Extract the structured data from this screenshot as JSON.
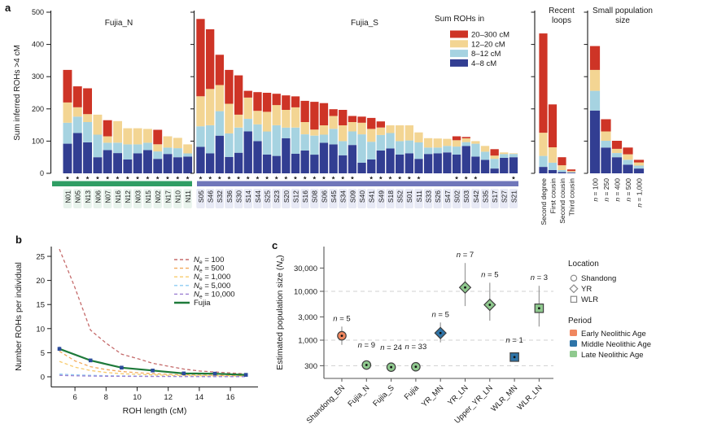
{
  "panels": {
    "a_label": "a",
    "b_label": "b",
    "c_label": "c"
  },
  "chart_data": [
    {
      "id": "a",
      "type": "bar",
      "stacked": true,
      "ylabel": "Sum inferred ROHs >4 cM",
      "ylim": [
        0,
        500
      ],
      "yticks": [
        0,
        100,
        200,
        300,
        400,
        500
      ],
      "segment_order": [
        "4–8 cM",
        "8–12 cM",
        "12–20 cM",
        "20–300 cM"
      ],
      "segment_colors": [
        "#323e92",
        "#a6d3e1",
        "#f3d593",
        "#ce3426"
      ],
      "legend": {
        "title": "Sum ROHs in",
        "items": [
          {
            "label": "20–300 cM",
            "color": "#ce3426"
          },
          {
            "label": "12–20 cM",
            "color": "#f3d593"
          },
          {
            "label": "8–12 cM",
            "color": "#a6d3e1"
          },
          {
            "label": "4–8 cM",
            "color": "#323e92"
          }
        ]
      },
      "groups": [
        {
          "name": "Fujia_N",
          "band_color": "#2f9e64",
          "label_bg": "#e8f3ec",
          "bars": [
            {
              "label": "N01",
              "star": true,
              "segments": [
                92,
                65,
                63,
                101
              ]
            },
            {
              "label": "N05",
              "star": true,
              "segments": [
                125,
                51,
                29,
                65
              ]
            },
            {
              "label": "N13",
              "star": true,
              "segments": [
                96,
                63,
                25,
                80
              ]
            },
            {
              "label": "N06",
              "star": true,
              "segments": [
                50,
                70,
                62,
                0
              ]
            },
            {
              "label": "N07",
              "star": true,
              "segments": [
                72,
                23,
                20,
                50
              ]
            },
            {
              "label": "N16",
              "star": true,
              "segments": [
                63,
                32,
                67,
                0
              ]
            },
            {
              "label": "N12",
              "star": true,
              "segments": [
                43,
                47,
                50,
                0
              ]
            },
            {
              "label": "N03",
              "star": true,
              "segments": [
                62,
                28,
                50,
                0
              ]
            },
            {
              "label": "N15",
              "star": true,
              "segments": [
                72,
                23,
                43,
                0
              ]
            },
            {
              "label": "N02",
              "star": true,
              "segments": [
                45,
                23,
                22,
                45
              ]
            },
            {
              "label": "N17",
              "star": true,
              "segments": [
                60,
                20,
                35,
                0
              ]
            },
            {
              "label": "N10",
              "star": true,
              "segments": [
                50,
                28,
                32,
                0
              ]
            },
            {
              "label": "N11",
              "star": true,
              "segments": [
                52,
                10,
                28,
                0
              ]
            }
          ]
        },
        {
          "name": "Fujia_S",
          "band_color": "#6f76ba",
          "label_bg": "#e7e9f5",
          "bars": [
            {
              "label": "S05",
              "star": true,
              "segments": [
                82,
                64,
                93,
                240
              ]
            },
            {
              "label": "S46",
              "star": true,
              "segments": [
                62,
                87,
                113,
                185
              ]
            },
            {
              "label": "S32",
              "star": true,
              "segments": [
                117,
                76,
                81,
                94
              ]
            },
            {
              "label": "S36",
              "star": true,
              "segments": [
                51,
                73,
                92,
                105
              ]
            },
            {
              "label": "S30",
              "star": true,
              "segments": [
                64,
                78,
                40,
                122
              ]
            },
            {
              "label": "S14",
              "star": true,
              "segments": [
                130,
                39,
                66,
                21
              ]
            },
            {
              "label": "S44",
              "star": true,
              "segments": [
                100,
                52,
                42,
                58
              ]
            },
            {
              "label": "S25",
              "star": true,
              "segments": [
                58,
                72,
                61,
                59
              ]
            },
            {
              "label": "S23",
              "star": true,
              "segments": [
                54,
                95,
                63,
                35
              ]
            },
            {
              "label": "S20",
              "star": true,
              "segments": [
                109,
                33,
                55,
                45
              ]
            },
            {
              "label": "S12",
              "star": true,
              "segments": [
                61,
                81,
                63,
                34
              ]
            },
            {
              "label": "S16",
              "star": true,
              "segments": [
                71,
                50,
                38,
                66
              ]
            },
            {
              "label": "S08",
              "star": true,
              "segments": [
                58,
                59,
                19,
                86
              ]
            },
            {
              "label": "S06",
              "star": true,
              "segments": [
                95,
                25,
                29,
                69
              ]
            },
            {
              "label": "S45",
              "star": true,
              "segments": [
                90,
                48,
                40,
                21
              ]
            },
            {
              "label": "S34",
              "star": true,
              "segments": [
                56,
                44,
                49,
                48
              ]
            },
            {
              "label": "S09",
              "star": true,
              "segments": [
                88,
                42,
                29,
                19
              ]
            },
            {
              "label": "S40",
              "star": false,
              "segments": [
                33,
                88,
                36,
                19
              ]
            },
            {
              "label": "S41",
              "star": true,
              "segments": [
                43,
                55,
                40,
                34
              ]
            },
            {
              "label": "S49",
              "star": true,
              "segments": [
                71,
                48,
                23,
                19
              ]
            },
            {
              "label": "S18",
              "star": true,
              "segments": [
                77,
                48,
                24,
                0
              ]
            },
            {
              "label": "S52",
              "star": true,
              "segments": [
                58,
                42,
                49,
                0
              ]
            },
            {
              "label": "S01",
              "star": true,
              "segments": [
                62,
                40,
                47,
                0
              ]
            },
            {
              "label": "S11",
              "star": true,
              "segments": [
                45,
                51,
                31,
                0
              ]
            },
            {
              "label": "S33",
              "star": false,
              "segments": [
                60,
                20,
                29,
                0
              ]
            },
            {
              "label": "S26",
              "star": false,
              "segments": [
                62,
                18,
                28,
                0
              ]
            },
            {
              "label": "S47",
              "star": false,
              "segments": [
                65,
                20,
                22,
                0
              ]
            },
            {
              "label": "S02",
              "star": true,
              "segments": [
                58,
                25,
                20,
                12
              ]
            },
            {
              "label": "S03",
              "star": true,
              "segments": [
                85,
                12,
                12,
                4
              ]
            },
            {
              "label": "S42",
              "star": true,
              "segments": [
                52,
                40,
                8,
                0
              ]
            },
            {
              "label": "S35",
              "star": false,
              "segments": [
                42,
                25,
                18,
                0
              ]
            },
            {
              "label": "S17",
              "star": false,
              "segments": [
                15,
                30,
                10,
                20
              ]
            },
            {
              "label": "S27",
              "star": false,
              "segments": [
                48,
                12,
                5,
                0
              ]
            },
            {
              "label": "S21",
              "star": true,
              "segments": [
                50,
                10,
                2,
                0
              ]
            }
          ]
        },
        {
          "name": "Recent loops",
          "bars": [
            {
              "label": "Second degree",
              "star": false,
              "segments": [
                20,
                34,
                72,
                308
              ]
            },
            {
              "label": "First cousin",
              "star": false,
              "segments": [
                10,
                23,
                48,
                133
              ]
            },
            {
              "label": "Second cousin",
              "star": false,
              "segments": [
                4,
                6,
                15,
                25
              ]
            },
            {
              "label": "Third cousin",
              "star": false,
              "segments": [
                2,
                2,
                3,
                5
              ]
            }
          ]
        },
        {
          "name": "Small population size",
          "bars": [
            {
              "label": "n = 100",
              "star": false,
              "segments": [
                195,
                61,
                65,
                74
              ]
            },
            {
              "label": "n = 250",
              "star": false,
              "segments": [
                80,
                21,
                29,
                38
              ]
            },
            {
              "label": "n = 400",
              "star": false,
              "segments": [
                50,
                13,
                13,
                25
              ]
            },
            {
              "label": "n = 500",
              "star": false,
              "segments": [
                27,
                15,
                17,
                21
              ]
            },
            {
              "label": "n = 1,000",
              "star": false,
              "segments": [
                15,
                9,
                10,
                8
              ]
            }
          ]
        }
      ]
    },
    {
      "id": "b",
      "type": "line",
      "xlabel": "ROH length (cM)",
      "ylabel": "Number ROHs per individual",
      "xlim": [
        4.6,
        17.6
      ],
      "ylim": [
        0,
        27
      ],
      "xticks": [
        6,
        8,
        10,
        12,
        14,
        16
      ],
      "yticks": [
        0,
        5,
        10,
        15,
        20,
        25
      ],
      "x": [
        5,
        6,
        7,
        8,
        9,
        10,
        11,
        12,
        13,
        14,
        15,
        16,
        17
      ],
      "series": [
        {
          "label": "Ne = 100",
          "color": "#c56b6b",
          "dash": true,
          "y": [
            26.5,
            18.5,
            9.7,
            7.0,
            4.7,
            3.8,
            2.8,
            2.2,
            1.6,
            1.2,
            1.0,
            0.8,
            0.6
          ]
        },
        {
          "label": "Ne = 500",
          "color": "#f2a95c",
          "dash": true,
          "y": [
            5.3,
            3.3,
            2.1,
            1.5,
            1.1,
            0.85,
            0.65,
            0.5,
            0.4,
            0.35,
            0.3,
            0.25,
            0.2
          ]
        },
        {
          "label": "Ne = 1,000",
          "color": "#f7cb6d",
          "dash": true,
          "y": [
            3.2,
            2.0,
            1.3,
            0.9,
            0.65,
            0.5,
            0.4,
            0.3,
            0.25,
            0.2,
            0.18,
            0.15,
            0.12
          ]
        },
        {
          "label": "Ne = 5,000",
          "color": "#8ecbf2",
          "dash": true,
          "y": [
            0.55,
            0.4,
            0.3,
            0.22,
            0.18,
            0.15,
            0.12,
            0.1,
            0.08,
            0.07,
            0.06,
            0.05,
            0.05
          ]
        },
        {
          "label": "Ne = 10,000",
          "color": "#9d80d2",
          "dash": true,
          "y": [
            0.3,
            0.2,
            0.15,
            0.12,
            0.1,
            0.08,
            0.07,
            0.06,
            0.05,
            0.04,
            0.04,
            0.03,
            0.03
          ]
        },
        {
          "label": "Fujia",
          "color": "#1e7a3a",
          "dash": false,
          "marker_color": "#2b4b9b",
          "x": [
            5,
            7,
            9,
            11,
            13,
            15,
            17
          ],
          "y": [
            5.8,
            3.4,
            1.9,
            1.3,
            0.7,
            0.65,
            0.4
          ],
          "yerr": [
            0.5,
            0.25,
            0.2,
            0.15,
            0.12,
            0.1,
            0.1
          ]
        }
      ]
    },
    {
      "id": "c",
      "type": "scatter",
      "ylabel": "Estimated population size (Ne)",
      "yscale": "log",
      "yticks": [
        300,
        1000,
        3000,
        10000,
        30000
      ],
      "ytick_labels": [
        "300",
        "1,000",
        "3,000",
        "10,000",
        "30,000"
      ],
      "gridlines": [
        300,
        1000,
        10000
      ],
      "points": [
        {
          "category": "Shandong_EN",
          "n": 5,
          "value": 1230,
          "err_low": 800,
          "err_high": 1900,
          "marker": "circle",
          "period": "Early Neolithic Age",
          "color": "#f0875f"
        },
        {
          "category": "Fujia_N",
          "n": 9,
          "value": 310,
          "err_low": 270,
          "err_high": 355,
          "marker": "circle",
          "period": "Late Neolithic Age",
          "color": "#8fc98e"
        },
        {
          "category": "Fujia_S",
          "n": 24,
          "value": 280,
          "err_low": 255,
          "err_high": 305,
          "marker": "circle",
          "period": "Late Neolithic Age",
          "color": "#8fc98e"
        },
        {
          "category": "Fujia",
          "n": 33,
          "value": 285,
          "err_low": 260,
          "err_high": 310,
          "marker": "circle",
          "period": "Late Neolithic Age",
          "color": "#8fc98e"
        },
        {
          "category": "YR_MN",
          "n": 5,
          "value": 1400,
          "err_low": 900,
          "err_high": 2300,
          "marker": "diamond",
          "period": "Middle Neolithic Age",
          "color": "#2e74a8"
        },
        {
          "category": "YR_LN",
          "n": 7,
          "value": 12000,
          "err_low": 5000,
          "err_high": 38000,
          "marker": "diamond",
          "period": "Late Neolithic Age",
          "color": "#8fc98e"
        },
        {
          "category": "Upper_YR_LN",
          "n": 5,
          "value": 5300,
          "err_low": 2500,
          "err_high": 15000,
          "marker": "diamond",
          "period": "Late Neolithic Age",
          "color": "#8fc98e"
        },
        {
          "category": "WLR_MN",
          "n": 1,
          "value": 450,
          "err_low": null,
          "err_high": null,
          "marker": "square",
          "period": "Middle Neolithic Age",
          "color": "#2e74a8"
        },
        {
          "category": "WLR_LN",
          "n": 3,
          "value": 4500,
          "err_low": 1900,
          "err_high": 13000,
          "marker": "square",
          "period": "Late Neolithic Age",
          "color": "#8fc98e"
        }
      ],
      "legend_location": {
        "title": "Location",
        "items": [
          {
            "label": "Shandong",
            "marker": "circle"
          },
          {
            "label": "YR",
            "marker": "diamond"
          },
          {
            "label": "WLR",
            "marker": "square"
          }
        ]
      },
      "legend_period": {
        "title": "Period",
        "items": [
          {
            "label": "Early Neolithic Age",
            "color": "#f0875f"
          },
          {
            "label": "Middle Neolithic Age",
            "color": "#2e74a8"
          },
          {
            "label": "Late Neolithic Age",
            "color": "#8fc98e"
          }
        ]
      }
    }
  ]
}
